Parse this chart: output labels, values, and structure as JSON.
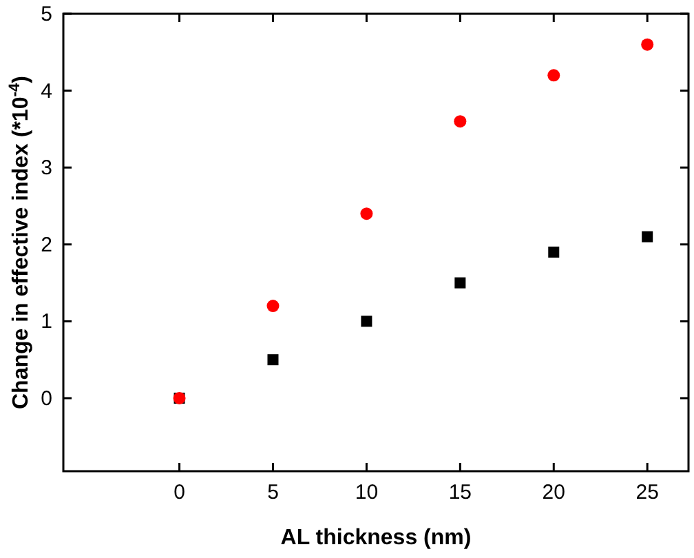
{
  "chart_data": {
    "type": "scatter",
    "xlabel": "AL thickness (nm)",
    "ylabel": "Change in effective index (*10$^{-4}$)",
    "x": [
      0,
      5,
      10,
      15,
      20,
      25
    ],
    "xlim": [
      -6.2,
      27.2
    ],
    "ylim": [
      -0.95,
      5
    ],
    "xticks": [
      0,
      5,
      10,
      15,
      20,
      25
    ],
    "yticks": [
      0,
      1,
      2,
      3,
      4,
      5
    ],
    "grid": false,
    "legend": false,
    "series": [
      {
        "color": "#000000",
        "marker": "square",
        "values": [
          0,
          0.5,
          1,
          1.5,
          1.9,
          2.1
        ]
      },
      {
        "color": "#ff0000",
        "marker": "circle",
        "values": [
          0,
          1.2,
          2.4,
          3.6,
          4.2,
          4.6
        ]
      }
    ]
  }
}
